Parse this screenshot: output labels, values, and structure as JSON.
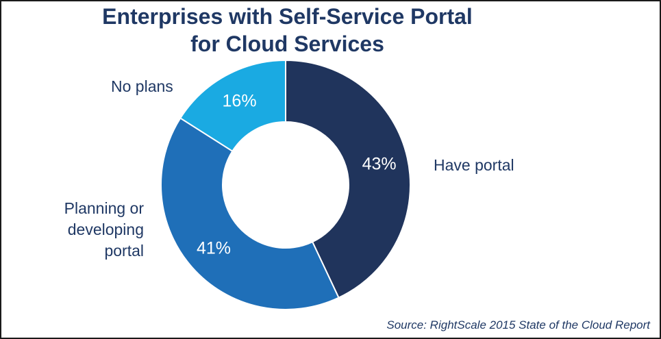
{
  "title_lines": [
    "Enterprises with Self-Service Portal",
    "for Cloud Services"
  ],
  "source": "Source: RightScale 2015 State of the Cloud Report",
  "colors": {
    "have_portal": "#20345c",
    "planning": "#1f6fb8",
    "no_plans": "#1aaae2",
    "text": "#1f3864",
    "percent_text": "#ffffff"
  },
  "chart_data": {
    "type": "pie",
    "title": "Enterprises with Self-Service Portal for Cloud Services",
    "categories": [
      "Have portal",
      "Planning or developing portal",
      "No plans"
    ],
    "values": [
      43,
      41,
      16
    ],
    "value_labels": [
      "43%",
      "41%",
      "16%"
    ],
    "label_lines": [
      [
        "Have portal"
      ],
      [
        "Planning or",
        "developing",
        "portal"
      ],
      [
        "No plans"
      ]
    ],
    "donut": true
  }
}
